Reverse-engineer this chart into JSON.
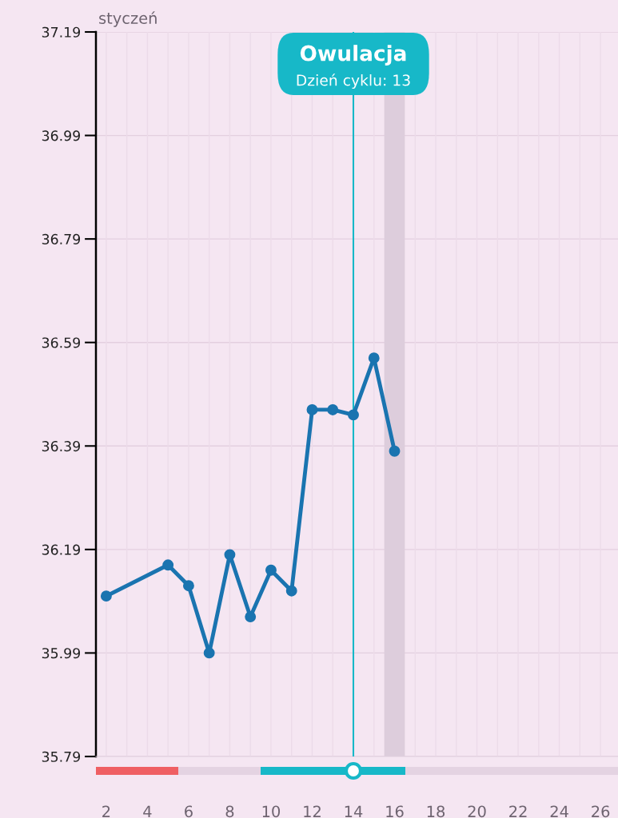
{
  "chart_data": {
    "type": "line",
    "title": "styczeń",
    "series": [
      {
        "color": "#1a74b0",
        "x": [
          2,
          5,
          6,
          7,
          8,
          9,
          10,
          11,
          12,
          13,
          14,
          15,
          16
        ],
        "values": [
          36.1,
          36.16,
          36.12,
          35.99,
          36.18,
          36.06,
          36.15,
          36.11,
          36.46,
          36.46,
          36.45,
          36.56,
          36.38
        ]
      }
    ],
    "xlim": [
      1.5,
      26.85
    ],
    "xticks": [
      2,
      4,
      6,
      8,
      10,
      12,
      14,
      16,
      18,
      20,
      22,
      24,
      26
    ],
    "ylim": [
      35.79,
      37.19
    ],
    "yticks": [
      {
        "value": 35.79,
        "label": "35.79"
      },
      {
        "value": 35.99,
        "label": "35.99"
      },
      {
        "value": 36.19,
        "label": "36.19"
      },
      {
        "value": 36.39,
        "label": "36.39"
      },
      {
        "value": 36.59,
        "label": "36.59"
      },
      {
        "value": 36.79,
        "label": "36.79"
      },
      {
        "value": 36.99,
        "label": "36.99"
      },
      {
        "value": 37.19,
        "label": "37.19"
      }
    ],
    "ref_lines": [
      {
        "axis": "x",
        "value": 14,
        "label": "Owulacja",
        "color": "#17b8c8"
      }
    ],
    "annotations": [
      "Dzień cyklu: 13"
    ],
    "bands": [
      {
        "axis": "x",
        "from": 15.5,
        "to": 16.5,
        "color": "#ddcddc"
      }
    ],
    "grid": true,
    "marker": "circle",
    "line_style": "solid"
  }
}
